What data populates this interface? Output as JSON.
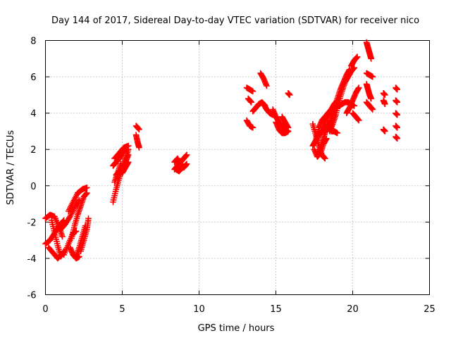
{
  "chart_data": {
    "type": "scatter",
    "title": "Day 144 of 2017, Sidereal Day-to-day VTEC variation (SDTVAR) for receiver nico",
    "xlabel": "GPS time / hours",
    "ylabel": "SDTVAR / TECUs",
    "xlim": [
      0,
      25
    ],
    "ylim": [
      -6,
      8
    ],
    "xticks": [
      "0",
      "5",
      "10",
      "15",
      "20",
      "25"
    ],
    "yticks": [
      "-6",
      "-4",
      "-2",
      "0",
      "2",
      "4",
      "6",
      "8"
    ],
    "grid": true,
    "marker": "plus",
    "color": "#ff0000",
    "tracks": [
      {
        "x": [
          0.0,
          0.3,
          0.6,
          0.9,
          1.1
        ],
        "y": [
          -1.8,
          -1.6,
          -1.7,
          -2.3,
          -2.8
        ]
      },
      {
        "x": [
          0.0,
          0.3,
          0.6,
          0.9,
          1.2
        ],
        "y": [
          -3.2,
          -3.0,
          -2.6,
          -2.2,
          -1.9
        ]
      },
      {
        "x": [
          0.4,
          0.6,
          0.8,
          1.0,
          1.2
        ],
        "y": [
          -1.9,
          -2.6,
          -3.3,
          -3.9,
          -3.6
        ]
      },
      {
        "x": [
          0.2,
          0.5,
          0.8,
          1.0
        ],
        "y": [
          -3.4,
          -3.7,
          -4.0,
          -3.8
        ]
      },
      {
        "x": [
          1.2,
          1.5,
          1.8,
          2.0
        ],
        "y": [
          -3.8,
          -3.2,
          -2.6,
          -2.5
        ]
      },
      {
        "x": [
          1.5,
          1.8,
          2.1,
          2.4,
          2.7
        ],
        "y": [
          -1.4,
          -0.9,
          -0.4,
          -0.2,
          -0.1
        ]
      },
      {
        "x": [
          1.0,
          1.3,
          1.6,
          1.9,
          2.2
        ],
        "y": [
          -2.4,
          -2.1,
          -1.7,
          -1.2,
          -0.8
        ]
      },
      {
        "x": [
          1.6,
          1.8,
          2.0,
          2.2
        ],
        "y": [
          -3.4,
          -3.8,
          -4.0,
          -3.9
        ]
      },
      {
        "x": [
          2.0,
          2.2,
          2.4,
          2.6
        ],
        "y": [
          -3.9,
          -3.4,
          -2.8,
          -2.2
        ]
      },
      {
        "x": [
          1.7,
          1.9,
          2.1,
          2.3,
          2.5,
          2.7
        ],
        "y": [
          -2.9,
          -2.2,
          -1.6,
          -1.1,
          -0.6,
          -0.4
        ]
      },
      {
        "x": [
          2.3,
          2.5,
          2.7,
          2.8
        ],
        "y": [
          -3.6,
          -3.0,
          -2.4,
          -1.8
        ]
      },
      {
        "x": [
          4.4,
          4.6,
          4.8,
          5.0,
          5.2,
          5.4
        ],
        "y": [
          -0.9,
          -0.2,
          0.4,
          1.0,
          1.5,
          2.0
        ]
      },
      {
        "x": [
          4.5,
          4.8,
          5.1,
          5.4
        ],
        "y": [
          1.5,
          1.8,
          2.1,
          2.2
        ]
      },
      {
        "x": [
          4.4,
          4.6,
          4.8,
          5.0,
          5.2
        ],
        "y": [
          1.1,
          1.3,
          1.5,
          1.8,
          2.0
        ]
      },
      {
        "x": [
          4.6,
          4.9,
          5.2,
          5.4
        ],
        "y": [
          0.6,
          0.9,
          1.3,
          1.7
        ]
      },
      {
        "x": [
          4.5,
          4.7,
          4.9
        ],
        "y": [
          0.2,
          0.7,
          1.2
        ]
      },
      {
        "x": [
          5.0,
          5.2,
          5.4
        ],
        "y": [
          0.7,
          1.0,
          1.3
        ]
      },
      {
        "x": [
          5.9,
          6.1
        ],
        "y": [
          3.3,
          3.1
        ]
      },
      {
        "x": [
          5.9,
          6.0,
          6.1
        ],
        "y": [
          2.8,
          2.4,
          2.1
        ]
      },
      {
        "x": [
          8.4,
          8.6,
          8.8,
          9.0,
          9.2
        ],
        "y": [
          0.9,
          1.1,
          1.3,
          1.5,
          1.7
        ]
      },
      {
        "x": [
          8.4,
          8.6,
          8.8,
          9.0,
          9.2
        ],
        "y": [
          1.3,
          1.5,
          1.2,
          1.0,
          1.2
        ]
      },
      {
        "x": [
          8.5,
          8.7,
          8.9,
          9.1
        ],
        "y": [
          0.9,
          0.8,
          1.0,
          1.1
        ]
      },
      {
        "x": [
          13.1,
          13.3,
          13.5
        ],
        "y": [
          5.4,
          5.3,
          5.2
        ]
      },
      {
        "x": [
          13.1,
          13.3,
          13.5
        ],
        "y": [
          3.6,
          3.3,
          3.2
        ]
      },
      {
        "x": [
          13.2,
          13.4
        ],
        "y": [
          4.8,
          4.6
        ]
      },
      {
        "x": [
          13.5,
          13.7,
          13.9,
          14.1,
          14.3
        ],
        "y": [
          4.1,
          4.3,
          4.5,
          4.6,
          4.4
        ]
      },
      {
        "x": [
          14.0,
          14.2,
          14.4
        ],
        "y": [
          6.2,
          5.9,
          5.5
        ]
      },
      {
        "x": [
          14.2,
          14.4,
          14.6,
          14.8
        ],
        "y": [
          4.5,
          4.2,
          4.0,
          3.9
        ]
      },
      {
        "x": [
          14.8,
          15.0,
          15.2,
          15.4,
          15.6,
          15.8
        ],
        "y": [
          4.2,
          3.8,
          3.5,
          3.3,
          3.1,
          3.0
        ]
      },
      {
        "x": [
          15.0,
          15.2,
          15.4,
          15.6,
          15.8
        ],
        "y": [
          3.5,
          3.1,
          2.9,
          2.9,
          3.0
        ]
      },
      {
        "x": [
          15.4,
          15.6,
          15.8
        ],
        "y": [
          3.8,
          3.5,
          3.2
        ]
      },
      {
        "x": [
          15.8,
          15.9
        ],
        "y": [
          5.1,
          5.0
        ]
      },
      {
        "x": [
          17.4,
          17.6,
          17.8,
          18.0,
          18.2
        ],
        "y": [
          3.4,
          2.8,
          2.2,
          1.7,
          1.5
        ]
      },
      {
        "x": [
          17.4,
          17.6,
          17.8,
          18.0,
          18.2
        ],
        "y": [
          2.2,
          2.5,
          2.8,
          3.0,
          3.2
        ]
      },
      {
        "x": [
          17.5,
          17.7,
          17.9,
          18.1,
          18.3
        ],
        "y": [
          2.0,
          1.6,
          1.8,
          2.3,
          2.6
        ]
      },
      {
        "x": [
          17.6,
          17.8,
          18.0,
          18.2,
          18.4,
          18.6
        ],
        "y": [
          2.5,
          3.2,
          3.6,
          3.8,
          4.0,
          4.2
        ]
      },
      {
        "x": [
          17.8,
          18.0,
          18.2,
          18.4,
          18.6
        ],
        "y": [
          1.8,
          2.4,
          2.9,
          3.3,
          3.6
        ]
      },
      {
        "x": [
          18.0,
          18.2,
          18.4,
          18.6,
          18.8,
          19.0
        ],
        "y": [
          3.0,
          3.5,
          3.9,
          4.2,
          4.5,
          4.7
        ]
      },
      {
        "x": [
          18.5,
          18.7,
          18.9,
          19.1,
          19.3,
          19.5,
          19.7,
          19.9,
          20.1
        ],
        "y": [
          3.0,
          3.4,
          3.9,
          4.6,
          5.2,
          5.7,
          6.0,
          6.3,
          6.5
        ]
      },
      {
        "x": [
          18.4,
          18.6,
          18.8,
          19.0,
          19.2,
          19.4,
          19.6,
          19.8
        ],
        "y": [
          3.2,
          3.7,
          4.2,
          4.8,
          5.3,
          5.7,
          6.1,
          6.4
        ]
      },
      {
        "x": [
          18.7,
          18.9,
          19.1,
          19.3,
          19.5,
          19.7,
          19.9,
          20.1
        ],
        "y": [
          4.1,
          4.3,
          4.4,
          4.5,
          4.6,
          4.6,
          4.5,
          4.4
        ]
      },
      {
        "x": [
          19.6,
          19.8,
          20.0,
          20.2,
          20.4
        ],
        "y": [
          4.0,
          4.3,
          4.7,
          5.1,
          5.4
        ]
      },
      {
        "x": [
          19.9,
          20.1,
          20.3
        ],
        "y": [
          6.6,
          6.9,
          7.1
        ]
      },
      {
        "x": [
          18.6,
          18.8,
          19.0
        ],
        "y": [
          3.0,
          3.0,
          2.9
        ]
      },
      {
        "x": [
          20.0,
          20.2,
          20.4
        ],
        "y": [
          4.0,
          3.8,
          3.6
        ]
      },
      {
        "x": [
          20.9,
          21.0,
          21.1,
          21.2
        ],
        "y": [
          7.9,
          7.6,
          7.3,
          7.0
        ]
      },
      {
        "x": [
          20.9,
          21.1,
          21.3
        ],
        "y": [
          6.2,
          6.1,
          6.0
        ]
      },
      {
        "x": [
          20.9,
          21.0,
          21.1,
          21.2
        ],
        "y": [
          5.6,
          5.3,
          5.0,
          4.8
        ]
      },
      {
        "x": [
          20.9,
          21.1,
          21.3
        ],
        "y": [
          4.6,
          4.4,
          4.2
        ]
      },
      {
        "x": [
          22.0,
          22.1
        ],
        "y": [
          5.1,
          5.0
        ]
      },
      {
        "x": [
          22.0,
          22.1
        ],
        "y": [
          4.7,
          4.5
        ]
      },
      {
        "x": [
          22.0,
          22.1
        ],
        "y": [
          3.1,
          3.0
        ]
      },
      {
        "x": [
          22.8,
          22.9
        ],
        "y": [
          5.4,
          5.3
        ]
      },
      {
        "x": [
          22.8,
          22.9
        ],
        "y": [
          4.7,
          4.6
        ]
      },
      {
        "x": [
          22.8,
          22.9
        ],
        "y": [
          4.0,
          3.9
        ]
      },
      {
        "x": [
          22.8,
          22.9
        ],
        "y": [
          3.3,
          3.2
        ]
      },
      {
        "x": [
          22.8,
          22.9
        ],
        "y": [
          2.7,
          2.6
        ]
      }
    ]
  }
}
